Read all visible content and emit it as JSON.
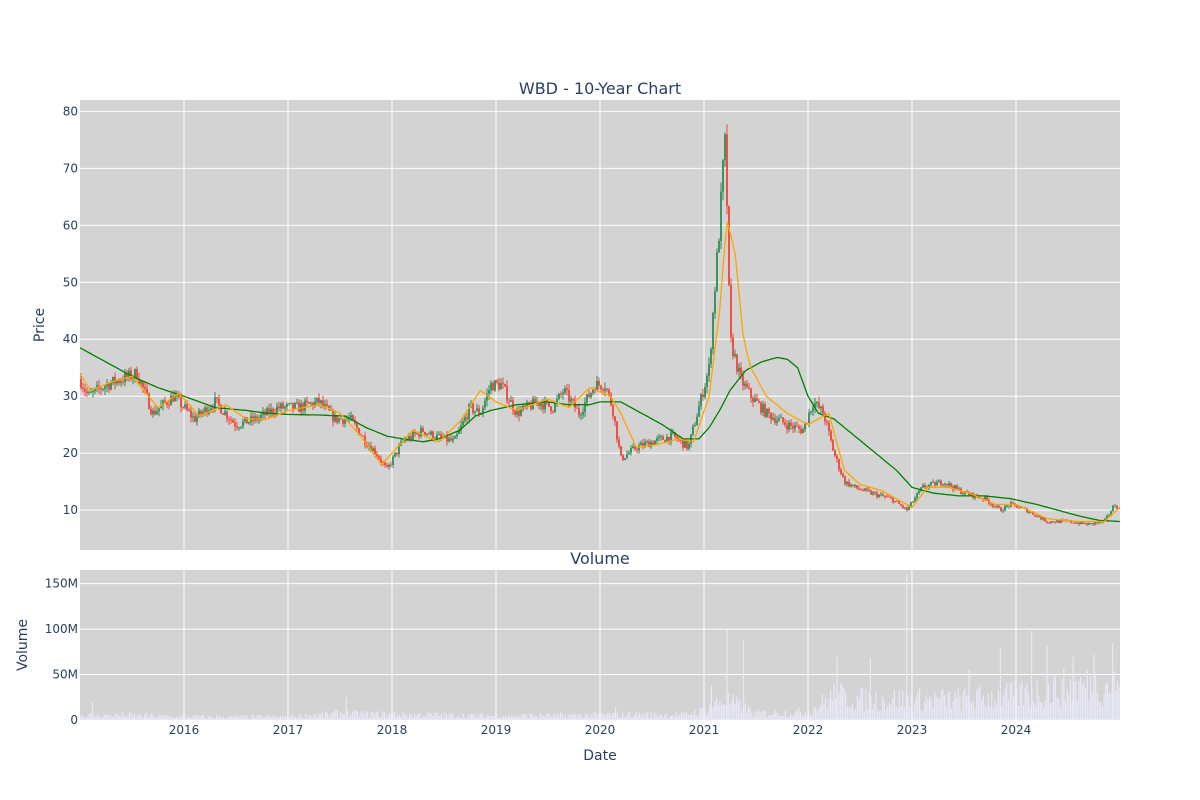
{
  "chart_data": [
    {
      "type": "candlestick",
      "title": "WBD - 10-Year Chart",
      "ylabel": "Price",
      "xlabel": "",
      "xlim": [
        2015.0,
        2025.0
      ],
      "ylim": [
        3,
        82
      ],
      "x_ticks": [
        2016,
        2017,
        2018,
        2019,
        2020,
        2021,
        2022,
        2023,
        2024
      ],
      "x_tick_labels": [
        "2016",
        "2017",
        "2018",
        "2019",
        "2020",
        "2021",
        "2022",
        "2023",
        "2024"
      ],
      "y_ticks": [
        10,
        20,
        30,
        40,
        50,
        60,
        70,
        80
      ],
      "y_tick_labels": [
        "10",
        "20",
        "30",
        "40",
        "50",
        "60",
        "70",
        "80"
      ],
      "grid": true,
      "background": "#d3d3d3",
      "colors": {
        "up": "#2e8b57",
        "down": "#ef4434",
        "ma_short": "#ffa500",
        "ma_long": "#008000"
      },
      "price_anchors": {
        "x": [
          2015.0,
          2015.08,
          2015.25,
          2015.4,
          2015.55,
          2015.7,
          2015.9,
          2016.1,
          2016.3,
          2016.5,
          2016.7,
          2016.9,
          2017.1,
          2017.3,
          2017.45,
          2017.6,
          2017.75,
          2017.85,
          2017.95,
          2018.1,
          2018.3,
          2018.4,
          2018.6,
          2018.75,
          2018.85,
          2018.95,
          2019.05,
          2019.2,
          2019.4,
          2019.55,
          2019.65,
          2019.8,
          2019.95,
          2020.05,
          2020.12,
          2020.2,
          2020.35,
          2020.5,
          2020.7,
          2020.85,
          2020.95,
          2021.05,
          2021.1,
          2021.15,
          2021.2,
          2021.22,
          2021.25,
          2021.28,
          2021.35,
          2021.45,
          2021.6,
          2021.8,
          2021.95,
          2022.05,
          2022.15,
          2022.25,
          2022.35,
          2022.45,
          2022.6,
          2022.8,
          2022.95,
          2023.1,
          2023.3,
          2023.5,
          2023.7,
          2023.85,
          2023.95,
          2024.1,
          2024.3,
          2024.5,
          2024.7,
          2024.85,
          2024.95,
          2025.0
        ],
        "y": [
          33,
          30,
          32,
          33,
          34,
          27,
          30,
          26,
          29,
          25,
          26,
          28,
          28,
          29,
          26,
          26,
          22,
          20,
          17,
          22,
          24,
          23,
          22,
          28,
          27,
          32,
          32,
          27,
          29,
          28,
          31,
          27,
          32,
          32,
          28,
          19,
          21,
          22,
          23,
          21,
          28,
          35,
          48,
          60,
          75,
          65,
          40,
          38,
          33,
          30,
          27,
          25,
          24,
          29,
          27,
          20,
          15,
          14,
          13,
          12,
          10,
          14,
          15,
          13,
          12,
          10,
          11,
          10,
          8,
          8,
          7.5,
          8,
          11,
          10
        ]
      },
      "ma_short_anchors": {
        "x": [
          2015.0,
          2015.1,
          2015.3,
          2015.5,
          2015.75,
          2015.95,
          2016.15,
          2016.4,
          2016.6,
          2016.8,
          2017.0,
          2017.3,
          2017.5,
          2017.7,
          2017.9,
          2018.05,
          2018.2,
          2018.45,
          2018.65,
          2018.85,
          2019.0,
          2019.2,
          2019.5,
          2019.7,
          2019.9,
          2020.1,
          2020.2,
          2020.35,
          2020.55,
          2020.75,
          2020.9,
          2021.05,
          2021.15,
          2021.22,
          2021.3,
          2021.38,
          2021.45,
          2021.6,
          2021.8,
          2022.0,
          2022.2,
          2022.35,
          2022.5,
          2022.7,
          2022.9,
          2023.0,
          2023.15,
          2023.35,
          2023.55,
          2023.8,
          2024.0,
          2024.3,
          2024.6,
          2024.85,
          2025.0
        ],
        "y": [
          34,
          31,
          32.5,
          33.5,
          28,
          30.5,
          26.5,
          28.5,
          26,
          26,
          27.5,
          28.5,
          27,
          23,
          18,
          21,
          24,
          22,
          25.5,
          31,
          29,
          27.5,
          29.5,
          28,
          31.5,
          30,
          27,
          21,
          21.5,
          22.5,
          22,
          30,
          45,
          61,
          55,
          40,
          35,
          30,
          27,
          25,
          27,
          17,
          14.5,
          13.5,
          11.5,
          10.5,
          14,
          14,
          13,
          11,
          11,
          8.5,
          8,
          8,
          10.5
        ]
      },
      "ma_long_anchors": {
        "x": [
          2015.0,
          2015.15,
          2015.3,
          2015.5,
          2015.75,
          2016.0,
          2016.3,
          2016.6,
          2016.8,
          2017.0,
          2017.3,
          2017.55,
          2017.75,
          2017.95,
          2018.1,
          2018.3,
          2018.45,
          2018.65,
          2018.8,
          2018.95,
          2019.2,
          2019.5,
          2019.7,
          2019.9,
          2020.0,
          2020.2,
          2020.4,
          2020.6,
          2020.8,
          2020.95,
          2021.05,
          2021.15,
          2021.25,
          2021.4,
          2021.55,
          2021.7,
          2021.8,
          2021.9,
          2022.0,
          2022.1,
          2022.25,
          2022.45,
          2022.65,
          2022.85,
          2023.0,
          2023.2,
          2023.45,
          2023.7,
          2023.95,
          2024.2,
          2024.4,
          2024.6,
          2024.8,
          2025.0
        ],
        "y": [
          38.5,
          37,
          35.5,
          33.5,
          31.5,
          30,
          28,
          27.5,
          27,
          26.8,
          26.7,
          26.5,
          24.5,
          23,
          22.5,
          22,
          22.5,
          24,
          26.5,
          27.5,
          28.5,
          29,
          28.5,
          28.5,
          29,
          29,
          27,
          25,
          22.5,
          22.5,
          24.5,
          27.5,
          31,
          34.5,
          36,
          36.8,
          36.5,
          35,
          30,
          27,
          26,
          23,
          20,
          17,
          14,
          13,
          12.5,
          12.5,
          12,
          11,
          10,
          9,
          8.2,
          8
        ]
      }
    },
    {
      "type": "bar",
      "title": "Volume",
      "ylabel": "Volume",
      "xlabel": "Date",
      "xlim": [
        2015.0,
        2025.0
      ],
      "ylim": [
        0,
        165000000
      ],
      "x_ticks": [
        2016,
        2017,
        2018,
        2019,
        2020,
        2021,
        2022,
        2023,
        2024
      ],
      "x_tick_labels": [
        "2016",
        "2017",
        "2018",
        "2019",
        "2020",
        "2021",
        "2022",
        "2023",
        "2024"
      ],
      "y_ticks": [
        0,
        50000000,
        100000000,
        150000000
      ],
      "y_tick_labels": [
        "0",
        "50M",
        "100M",
        "150M"
      ],
      "grid": true,
      "background": "#d3d3d3",
      "bar_color": "#e8e8f8",
      "volume_anchors": {
        "x": [
          2015.0,
          2015.5,
          2016.0,
          2017.0,
          2017.5,
          2018.0,
          2019.0,
          2020.0,
          2020.3,
          2020.8,
          2021.0,
          2021.2,
          2021.5,
          2022.0,
          2022.25,
          2022.5,
          2023.0,
          2023.5,
          2024.0,
          2024.5,
          2025.0
        ],
        "y": [
          5000000,
          6000000,
          4000000,
          4000000,
          8000000,
          7000000,
          5000000,
          6000000,
          7000000,
          6000000,
          12000000,
          25000000,
          8000000,
          10000000,
          30000000,
          25000000,
          25000000,
          25000000,
          30000000,
          40000000,
          45000000
        ]
      },
      "volume_spikes": {
        "x": [
          2015.12,
          2017.56,
          2020.15,
          2021.07,
          2021.22,
          2021.38,
          2022.28,
          2022.6,
          2022.95,
          2023.55,
          2023.85,
          2024.15,
          2024.3,
          2024.55,
          2024.75,
          2024.93
        ],
        "y": [
          20000000,
          25000000,
          15000000,
          38000000,
          100000000,
          88000000,
          70000000,
          68000000,
          160000000,
          55000000,
          80000000,
          98000000,
          82000000,
          70000000,
          72000000,
          85000000
        ]
      }
    }
  ]
}
